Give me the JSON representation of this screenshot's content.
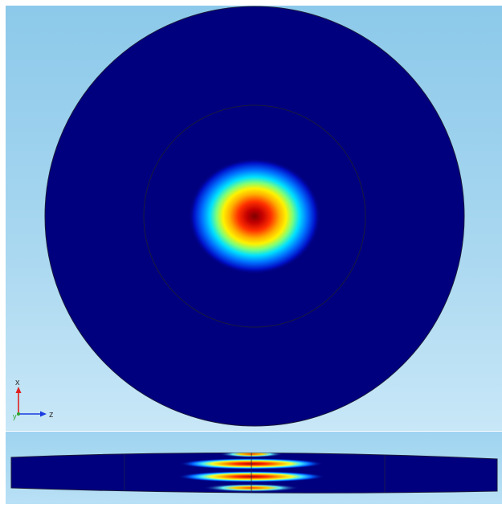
{
  "colors": {
    "background_top": "#8cc9ea",
    "background_bottom": "#c8e7f7",
    "field_low": "#00007f",
    "field_high": "#7f0000",
    "colormap": "rainbow (jet)",
    "outline": "#1a1a3a"
  },
  "axis_triad": {
    "vertical_label": "x",
    "horizontal_label": "z",
    "depth_label": "y",
    "vertical_color": "#e02020",
    "horizontal_color": "#1a3be0",
    "depth_color": "#2aa52a"
  }
}
